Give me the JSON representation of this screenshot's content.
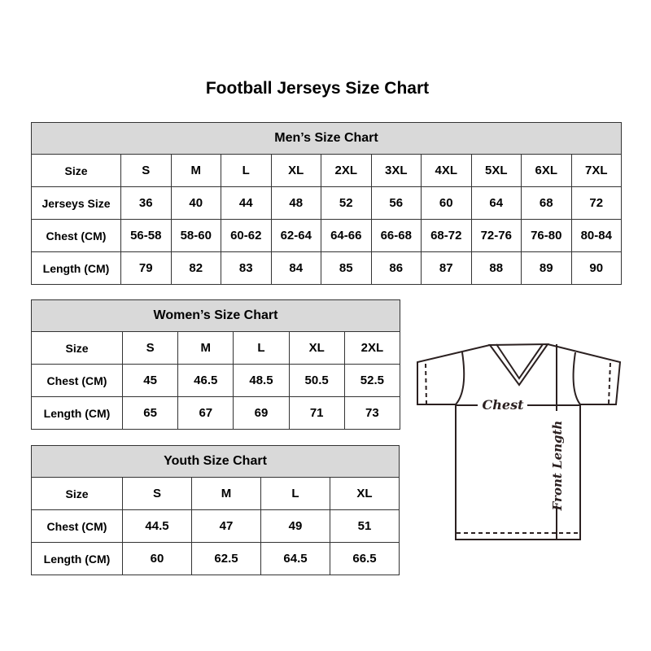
{
  "title": "Football Jerseys Size Chart",
  "men": {
    "caption": "Men’s Size Chart",
    "rows": [
      {
        "label": "Size",
        "values": [
          "S",
          "M",
          "L",
          "XL",
          "2XL",
          "3XL",
          "4XL",
          "5XL",
          "6XL",
          "7XL"
        ]
      },
      {
        "label": "Jerseys Size",
        "values": [
          "36",
          "40",
          "44",
          "48",
          "52",
          "56",
          "60",
          "64",
          "68",
          "72"
        ]
      },
      {
        "label": "Chest (CM)",
        "values": [
          "56-58",
          "58-60",
          "60-62",
          "62-64",
          "64-66",
          "66-68",
          "68-72",
          "72-76",
          "76-80",
          "80-84"
        ]
      },
      {
        "label": "Length (CM)",
        "values": [
          "79",
          "82",
          "83",
          "84",
          "85",
          "86",
          "87",
          "88",
          "89",
          "90"
        ]
      }
    ]
  },
  "women": {
    "caption": "Women’s Size Chart",
    "rows": [
      {
        "label": "Size",
        "values": [
          "S",
          "M",
          "L",
          "XL",
          "2XL"
        ]
      },
      {
        "label": "Chest (CM)",
        "values": [
          "45",
          "46.5",
          "48.5",
          "50.5",
          "52.5"
        ]
      },
      {
        "label": "Length (CM)",
        "values": [
          "65",
          "67",
          "69",
          "71",
          "73"
        ]
      }
    ]
  },
  "youth": {
    "caption": "Youth Size Chart",
    "rows": [
      {
        "label": "Size",
        "values": [
          "S",
          "M",
          "L",
          "XL"
        ]
      },
      {
        "label": "Chest (CM)",
        "values": [
          "44.5",
          "47",
          "49",
          "51"
        ]
      },
      {
        "label": "Length (CM)",
        "values": [
          "60",
          "62.5",
          "64.5",
          "66.5"
        ]
      }
    ]
  },
  "diagram": {
    "chest_label": "Chest",
    "length_label": "Front Length",
    "line_color": "#2b2020"
  }
}
